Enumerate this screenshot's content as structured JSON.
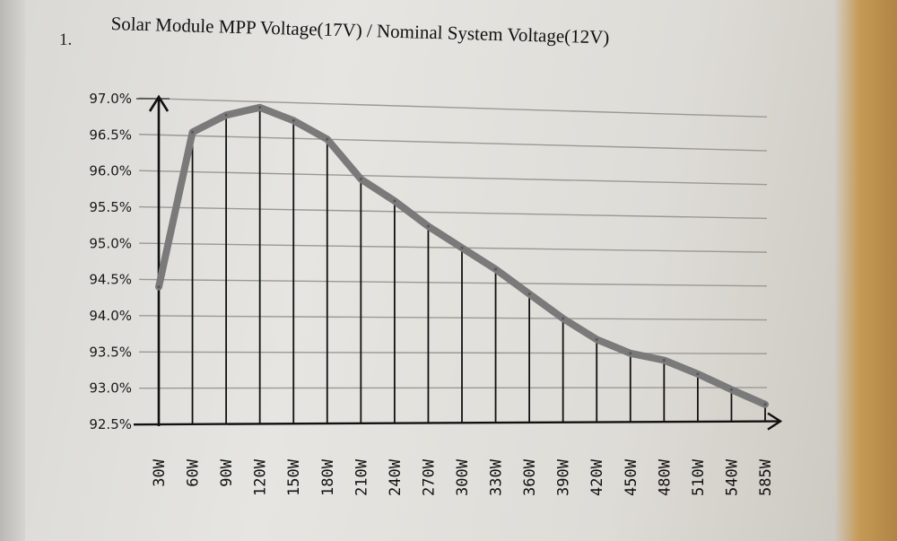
{
  "figure": {
    "number": "1.",
    "title": "Solar Module MPP Voltage(17V) / Nominal System Voltage(12V)"
  },
  "chart_data": {
    "type": "line",
    "title": "Solar Module MPP Voltage(17V) / Nominal System Voltage(12V)",
    "xlabel": "",
    "ylabel": "",
    "categories": [
      "30W",
      "60W",
      "90W",
      "120W",
      "150W",
      "180W",
      "210W",
      "240W",
      "270W",
      "300W",
      "330W",
      "360W",
      "390W",
      "420W",
      "450W",
      "480W",
      "510W",
      "540W",
      "585W"
    ],
    "y_tick_labels": [
      "92.5%",
      "93.0%",
      "93.5%",
      "94.0%",
      "94.5%",
      "95.0%",
      "95.5%",
      "96.0%",
      "96.5%",
      "97.0%"
    ],
    "series": [
      {
        "values": [
          94.4,
          96.55,
          96.8,
          96.92,
          96.75,
          96.5,
          95.95,
          95.65,
          95.3,
          95.0,
          94.7,
          94.35,
          94.0,
          93.7,
          93.5,
          93.4,
          93.2,
          92.97,
          92.75
        ]
      }
    ],
    "ylim": [
      92.5,
      97.0
    ],
    "grid": true,
    "line_color": "#7a7a7a"
  }
}
